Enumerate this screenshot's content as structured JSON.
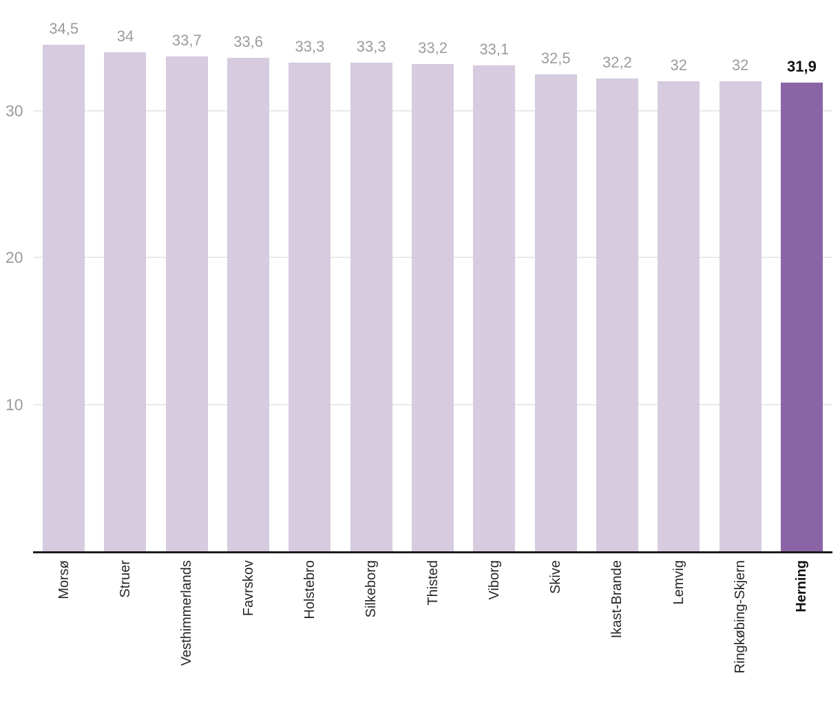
{
  "chart_data": {
    "type": "bar",
    "title": "",
    "categories": [
      "Morsø",
      "Struer",
      "Vesthimmerlands",
      "Favrskov",
      "Holstebro",
      "Silkeborg",
      "Thisted",
      "Viborg",
      "Skive",
      "Ikast-Brande",
      "Lemvig",
      "Ringkøbing-Skjern",
      "Herning"
    ],
    "values": [
      34.5,
      34,
      33.7,
      33.6,
      33.3,
      33.3,
      33.2,
      33.1,
      32.5,
      32.2,
      32,
      32,
      31.9
    ],
    "value_labels": [
      "34,5",
      "34",
      "33,7",
      "33,6",
      "33,3",
      "33,3",
      "33,2",
      "33,1",
      "32,5",
      "32,2",
      "32",
      "32",
      "31,9"
    ],
    "highlight_index": 12,
    "highlighted_category": "Herning",
    "y_ticks": [
      10,
      20,
      30
    ],
    "y_tick_labels": [
      "10",
      "20",
      "30"
    ],
    "ylim": [
      0,
      37.5
    ],
    "grid": true,
    "legend": "none",
    "x_label_rotation": -90,
    "xlabel": "",
    "ylabel": "",
    "colors": {
      "bar": "#d6cbdf",
      "highlighted_bar": "#8a64a4",
      "value_label": "#9b9b9b",
      "highlighted_value_label": "#111111",
      "axis_line": "#1a1a1a",
      "gridline": "#e9e9e9",
      "tick_label": "#9b9b9b",
      "category_label": "#262626",
      "highlighted_category_label": "#111111",
      "background": "#ffffff"
    }
  }
}
